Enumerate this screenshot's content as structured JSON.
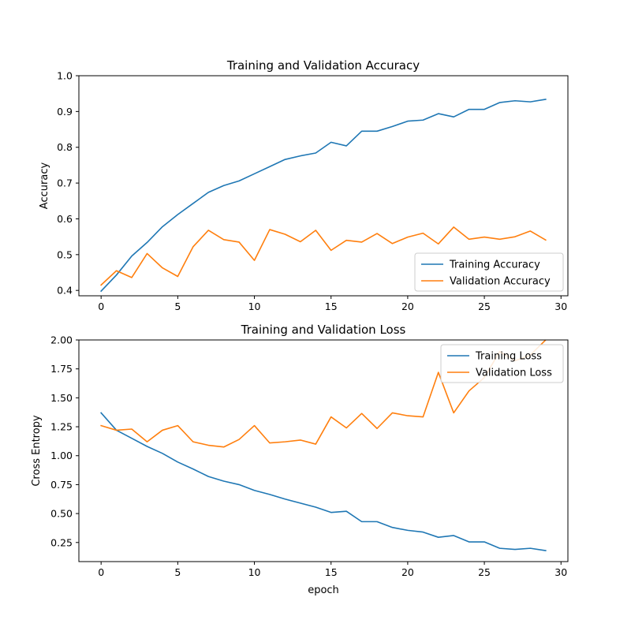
{
  "chart_data": [
    {
      "type": "line",
      "title": "Training and Validation Accuracy",
      "xlabel": "",
      "ylabel": "Accuracy",
      "xlim": [
        -1.45,
        30.45
      ],
      "ylim": [
        0.385,
        1.0
      ],
      "xticks": [
        0,
        5,
        10,
        15,
        20,
        25,
        30
      ],
      "xtick_labels": [
        "0",
        "5",
        "10",
        "15",
        "20",
        "25",
        "30"
      ],
      "yticks": [
        0.4,
        0.5,
        0.6,
        0.7,
        0.8,
        0.9,
        1.0
      ],
      "ytick_labels": [
        "0.4",
        "0.5",
        "0.6",
        "0.7",
        "0.8",
        "0.9",
        "1.0"
      ],
      "grid": false,
      "legend_position": "lower-right",
      "x": [
        0,
        1,
        2,
        3,
        4,
        5,
        6,
        7,
        8,
        9,
        10,
        11,
        12,
        13,
        14,
        15,
        16,
        17,
        18,
        19,
        20,
        21,
        22,
        23,
        24,
        25,
        26,
        27,
        28,
        29
      ],
      "series": [
        {
          "name": "Training Accuracy",
          "color": "#1f77b4",
          "values": [
            0.398,
            0.443,
            0.496,
            0.534,
            0.578,
            0.612,
            0.643,
            0.674,
            0.693,
            0.706,
            0.726,
            0.746,
            0.766,
            0.776,
            0.784,
            0.814,
            0.804,
            0.845,
            0.845,
            0.858,
            0.873,
            0.876,
            0.894,
            0.885,
            0.906,
            0.906,
            0.925,
            0.93,
            0.927,
            0.934
          ]
        },
        {
          "name": "Validation Accuracy",
          "color": "#ff7f0e",
          "values": [
            0.415,
            0.455,
            0.436,
            0.503,
            0.463,
            0.439,
            0.522,
            0.568,
            0.542,
            0.535,
            0.484,
            0.57,
            0.557,
            0.536,
            0.568,
            0.512,
            0.54,
            0.535,
            0.559,
            0.531,
            0.549,
            0.56,
            0.53,
            0.577,
            0.543,
            0.549,
            0.543,
            0.55,
            0.566,
            0.541
          ]
        }
      ]
    },
    {
      "type": "line",
      "title": "Training and Validation Loss",
      "xlabel": "epoch",
      "ylabel": "Cross Entropy",
      "xlim": [
        -1.45,
        30.45
      ],
      "ylim": [
        0.085,
        2.0
      ],
      "xticks": [
        0,
        5,
        10,
        15,
        20,
        25,
        30
      ],
      "xtick_labels": [
        "0",
        "5",
        "10",
        "15",
        "20",
        "25",
        "30"
      ],
      "yticks": [
        0.25,
        0.5,
        0.75,
        1.0,
        1.25,
        1.5,
        1.75,
        2.0
      ],
      "ytick_labels": [
        "0.25",
        "0.50",
        "0.75",
        "1.00",
        "1.25",
        "1.50",
        "1.75",
        "2.00"
      ],
      "grid": false,
      "legend_position": "upper-right",
      "x": [
        0,
        1,
        2,
        3,
        4,
        5,
        6,
        7,
        8,
        9,
        10,
        11,
        12,
        13,
        14,
        15,
        16,
        17,
        18,
        19,
        20,
        21,
        22,
        23,
        24,
        25,
        26,
        27,
        28,
        29
      ],
      "series": [
        {
          "name": "Training Loss",
          "color": "#1f77b4",
          "values": [
            1.37,
            1.22,
            1.15,
            1.08,
            1.02,
            0.945,
            0.885,
            0.82,
            0.78,
            0.75,
            0.7,
            0.665,
            0.625,
            0.59,
            0.555,
            0.51,
            0.52,
            0.43,
            0.43,
            0.38,
            0.355,
            0.34,
            0.295,
            0.31,
            0.255,
            0.255,
            0.2,
            0.19,
            0.2,
            0.18
          ]
        },
        {
          "name": "Validation Loss",
          "color": "#ff7f0e",
          "values": [
            1.26,
            1.22,
            1.23,
            1.12,
            1.22,
            1.26,
            1.12,
            1.09,
            1.075,
            1.14,
            1.26,
            1.11,
            1.12,
            1.135,
            1.1,
            1.335,
            1.24,
            1.365,
            1.235,
            1.37,
            1.345,
            1.335,
            1.72,
            1.37,
            1.56,
            1.675,
            1.9,
            1.82,
            1.87,
            2.0
          ]
        }
      ]
    }
  ]
}
